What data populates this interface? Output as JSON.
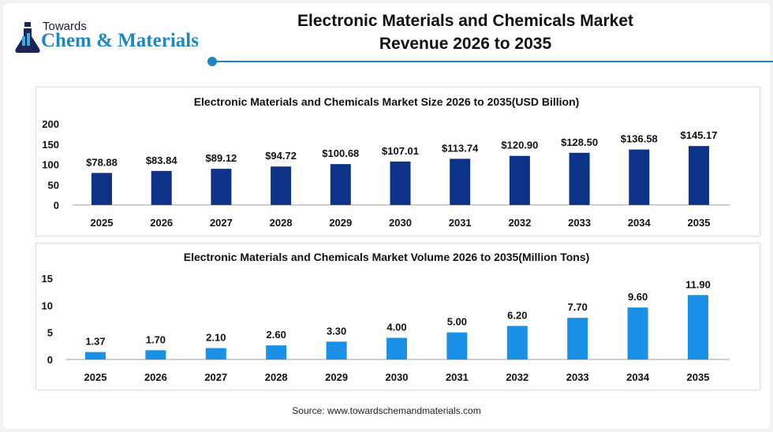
{
  "header": {
    "logo_small": "Towards",
    "logo_main": "Chem & Materials",
    "title_line1": "Electronic Materials and Chemicals Market",
    "title_line2": "Revenue 2026 to 2035",
    "accent_color": "#1f86c6"
  },
  "chart_data": [
    {
      "type": "bar",
      "title": "Electronic Materials and Chemicals Market Size 2026 to 2035(USD Billion)",
      "categories": [
        "2025",
        "2026",
        "2027",
        "2028",
        "2029",
        "2030",
        "2031",
        "2032",
        "2033",
        "2034",
        "2035"
      ],
      "values": [
        78.88,
        83.84,
        89.12,
        94.72,
        100.68,
        107.01,
        113.74,
        120.9,
        128.5,
        136.58,
        145.17
      ],
      "data_labels": [
        "$78.88",
        "$83.84",
        "$89.12",
        "$94.72",
        "$100.68",
        "$107.01",
        "$113.74",
        "$120.90",
        "$128.50",
        "$136.58",
        "$145.17"
      ],
      "yticks": [
        "0",
        "50",
        "100",
        "150",
        "200"
      ],
      "ylim": [
        0,
        200
      ],
      "grid": false,
      "color": "#0d3389"
    },
    {
      "type": "bar",
      "title": "Electronic Materials and Chemicals Market Volume 2026 to 2035(Million Tons)",
      "categories": [
        "2025",
        "2026",
        "2027",
        "2028",
        "2029",
        "2030",
        "2031",
        "2032",
        "2033",
        "2034",
        "2035"
      ],
      "values": [
        1.37,
        1.7,
        2.1,
        2.6,
        3.3,
        4.0,
        5.0,
        6.2,
        7.7,
        9.6,
        11.9
      ],
      "data_labels": [
        "1.37",
        "1.70",
        "2.10",
        "2.60",
        "3.30",
        "4.00",
        "5.00",
        "6.20",
        "7.70",
        "9.60",
        "11.90"
      ],
      "yticks": [
        "0",
        "5",
        "10",
        "15"
      ],
      "ylim": [
        0,
        15
      ],
      "grid": false,
      "color": "#1a90e6"
    }
  ],
  "footer": {
    "source": "Source: www.towardschemandmaterials.com"
  }
}
